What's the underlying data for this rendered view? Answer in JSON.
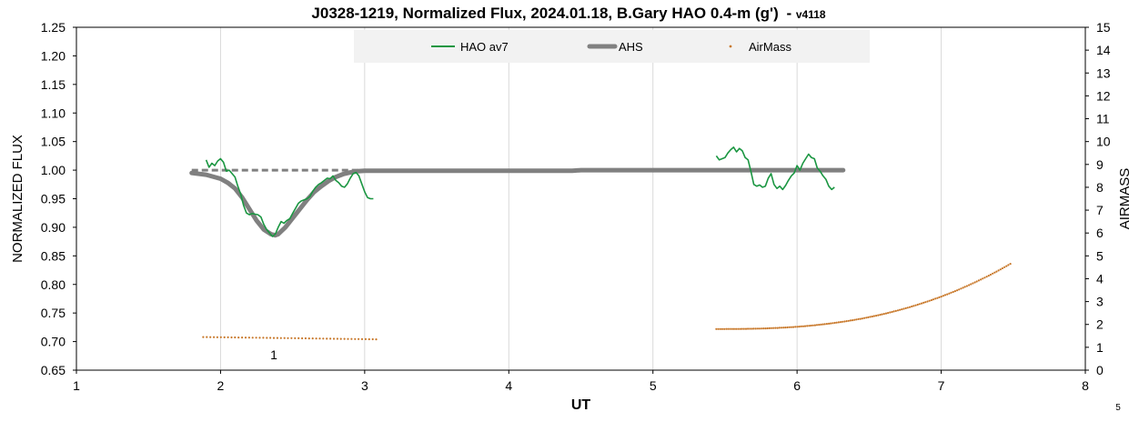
{
  "chart_data": {
    "type": "line",
    "title": "J0328-1219, Normalized Flux, 2024.01.18, B.Gary HAO 0.4-m (g')",
    "title_suffix": "- ",
    "version": "v4118",
    "xlabel": "UT",
    "ylabel": "NORMALIZED FLUX",
    "y2label": "AIRMASS",
    "xlim": [
      1,
      8
    ],
    "ylim": [
      0.65,
      1.25
    ],
    "y2lim": [
      0,
      15
    ],
    "xticks": [
      "1",
      "2",
      "3",
      "4",
      "5",
      "6",
      "7",
      "8"
    ],
    "yticks": [
      "0.65",
      "0.70",
      "0.75",
      "0.80",
      "0.85",
      "0.90",
      "0.95",
      "1.00",
      "1.05",
      "1.10",
      "1.15",
      "1.20",
      "1.25"
    ],
    "y2ticks": [
      "0",
      "1",
      "2",
      "3",
      "4",
      "5",
      "6",
      "7",
      "8",
      "9",
      "10",
      "11",
      "12",
      "13",
      "14",
      "15"
    ],
    "grid": "vertical",
    "legend_position": "top-center",
    "annotations": [
      {
        "text": "1",
        "x": 2.37,
        "y": 0.677
      }
    ],
    "corner_label": "5",
    "colors": {
      "hao": "#1a9641",
      "ahs": "#808080",
      "airmass": "#c8782a",
      "reference": "#808080"
    },
    "series": [
      {
        "name": "HAO av7",
        "type": "line",
        "axis": "left",
        "segments": [
          {
            "x": [
              1.9,
              1.92,
              1.94,
              1.96,
              1.98,
              2.0,
              2.02,
              2.04,
              2.06,
              2.08,
              2.1,
              2.12,
              2.14,
              2.16,
              2.18,
              2.2,
              2.22,
              2.24,
              2.26,
              2.28,
              2.3,
              2.32,
              2.34,
              2.36,
              2.38,
              2.4,
              2.42,
              2.44,
              2.46,
              2.48,
              2.5,
              2.52,
              2.54,
              2.56,
              2.58,
              2.6,
              2.62,
              2.64,
              2.66,
              2.68,
              2.7,
              2.72,
              2.74,
              2.76,
              2.78,
              2.8,
              2.82,
              2.84,
              2.86,
              2.88,
              2.9,
              2.92,
              2.94,
              2.96,
              2.98,
              3.0,
              3.02,
              3.04,
              3.06
            ],
            "y": [
              1.018,
              1.005,
              1.012,
              1.008,
              1.016,
              1.02,
              1.014,
              0.998,
              1.0,
              0.994,
              0.988,
              0.972,
              0.958,
              0.938,
              0.925,
              0.922,
              0.924,
              0.923,
              0.922,
              0.918,
              0.905,
              0.896,
              0.89,
              0.884,
              0.888,
              0.9,
              0.91,
              0.907,
              0.912,
              0.915,
              0.924,
              0.933,
              0.942,
              0.946,
              0.948,
              0.95,
              0.954,
              0.963,
              0.97,
              0.975,
              0.978,
              0.982,
              0.986,
              0.985,
              0.99,
              0.982,
              0.978,
              0.972,
              0.97,
              0.976,
              0.986,
              0.994,
              0.996,
              0.99,
              0.976,
              0.962,
              0.952,
              0.95,
              0.95
            ]
          },
          {
            "x": [
              5.44,
              5.46,
              5.48,
              5.5,
              5.52,
              5.54,
              5.56,
              5.58,
              5.6,
              5.62,
              5.64,
              5.66,
              5.68,
              5.7,
              5.72,
              5.74,
              5.76,
              5.78,
              5.8,
              5.82,
              5.84,
              5.86,
              5.88,
              5.9,
              5.92,
              5.94,
              5.96,
              5.98,
              6.0,
              6.02,
              6.04,
              6.06,
              6.08,
              6.1,
              6.12,
              6.14,
              6.16,
              6.18,
              6.2,
              6.22,
              6.24,
              6.26
            ],
            "y": [
              1.025,
              1.018,
              1.02,
              1.022,
              1.03,
              1.036,
              1.04,
              1.032,
              1.038,
              1.034,
              1.022,
              1.018,
              0.998,
              0.975,
              0.972,
              0.974,
              0.97,
              0.972,
              0.986,
              0.994,
              0.975,
              0.968,
              0.972,
              0.966,
              0.973,
              0.982,
              0.99,
              0.995,
              1.008,
              1.0,
              1.012,
              1.02,
              1.028,
              1.022,
              1.02,
              1.004,
              0.998,
              0.99,
              0.984,
              0.972,
              0.966,
              0.97
            ]
          }
        ]
      },
      {
        "name": "AHS",
        "type": "line",
        "axis": "left",
        "x": [
          1.8,
          1.9,
          2.0,
          2.05,
          2.1,
          2.15,
          2.2,
          2.25,
          2.3,
          2.35,
          2.38,
          2.4,
          2.45,
          2.5,
          2.55,
          2.6,
          2.65,
          2.7,
          2.75,
          2.8,
          2.85,
          2.9,
          2.95,
          3.0,
          3.1,
          3.5,
          4.0,
          4.44,
          4.5,
          5.0,
          5.5,
          6.0,
          6.32
        ],
        "y": [
          0.995,
          0.992,
          0.985,
          0.978,
          0.968,
          0.952,
          0.932,
          0.912,
          0.896,
          0.888,
          0.886,
          0.888,
          0.9,
          0.916,
          0.932,
          0.948,
          0.962,
          0.972,
          0.981,
          0.988,
          0.993,
          0.996,
          0.998,
          0.999,
          0.999,
          0.999,
          0.999,
          0.999,
          1.0,
          1.0,
          1.0,
          1.0,
          1.0
        ]
      },
      {
        "name": "",
        "type": "dashed-reference",
        "axis": "left",
        "x": [
          1.8,
          3.0
        ],
        "y": [
          1.0,
          1.0
        ]
      },
      {
        "name": "AirMass",
        "type": "scatter",
        "axis": "right",
        "segments": [
          {
            "x_start": 1.88,
            "x_end": 3.08,
            "y_start": 1.45,
            "y_end": 1.35,
            "n": 50,
            "curve": 1.0
          },
          {
            "x_start": 5.44,
            "x_end": 7.48,
            "y_start": 1.8,
            "y_end": 4.65,
            "n": 150,
            "curve": 2.6
          }
        ]
      }
    ]
  }
}
